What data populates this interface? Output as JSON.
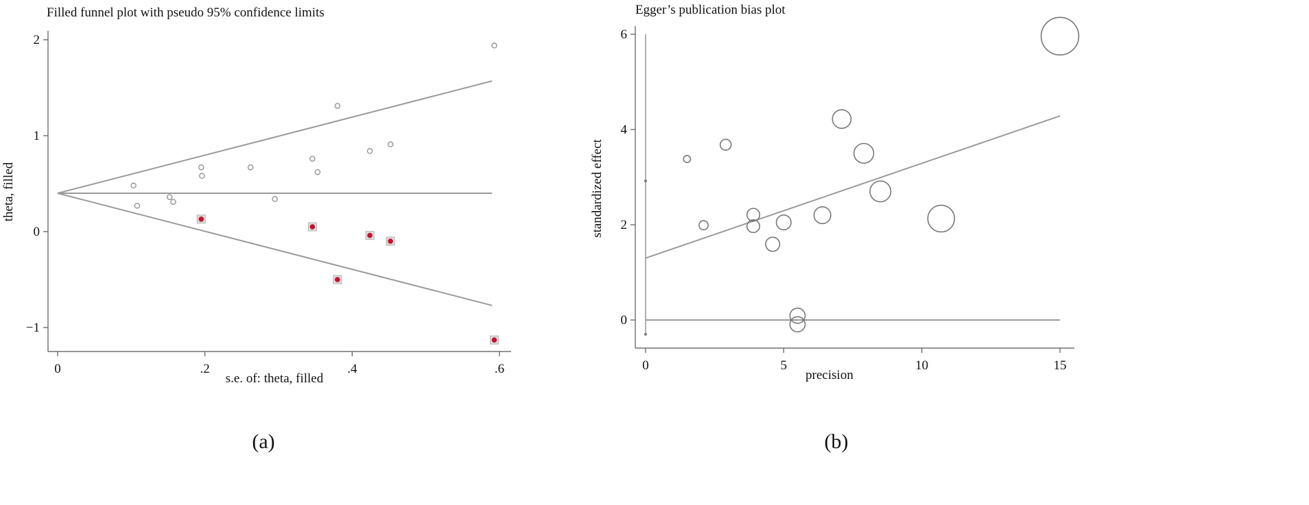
{
  "chart_data": [
    {
      "type": "scatter",
      "title": "Filled funnel plot with pseudo 95% confidence limits",
      "xlabel": "s.e. of: theta, filled",
      "ylabel": "theta, filled",
      "caption": "(a)",
      "xlim": [
        0,
        0.61
      ],
      "ylim": [
        -1.25,
        2.1
      ],
      "x_ticks": [
        0,
        0.2,
        0.4,
        0.6
      ],
      "x_tick_labels": [
        "0",
        ".2",
        ".4",
        ".6"
      ],
      "y_ticks": [
        -1,
        0,
        1,
        2
      ],
      "y_tick_labels": [
        "−1",
        "0",
        "1",
        "2"
      ],
      "pooled_estimate": 0.4,
      "funnel_lines": {
        "apex": [
          0,
          0.4
        ],
        "upper_end": [
          0.59,
          1.57
        ],
        "lower_end": [
          0.59,
          -0.77
        ]
      },
      "series": [
        {
          "role": "observed",
          "marker": "hollow-circle",
          "points": [
            [
              0.103,
              0.48
            ],
            [
              0.108,
              0.27
            ],
            [
              0.152,
              0.36
            ],
            [
              0.157,
              0.31
            ],
            [
              0.195,
              0.67
            ],
            [
              0.196,
              0.58
            ],
            [
              0.262,
              0.67
            ],
            [
              0.295,
              0.34
            ],
            [
              0.346,
              0.76
            ],
            [
              0.353,
              0.62
            ],
            [
              0.38,
              1.31
            ],
            [
              0.424,
              0.84
            ],
            [
              0.452,
              0.91
            ],
            [
              0.593,
              1.94
            ]
          ]
        },
        {
          "role": "filled",
          "marker": "filled-square",
          "points": [
            [
              0.195,
              0.13
            ],
            [
              0.346,
              0.05
            ],
            [
              0.38,
              -0.5
            ],
            [
              0.424,
              -0.04
            ],
            [
              0.452,
              -0.1
            ],
            [
              0.593,
              -1.13
            ]
          ]
        }
      ],
      "colors": {
        "filled_marker": "#c8102e",
        "lines": "#9a9a9a",
        "markers": "#8d8d8d"
      }
    },
    {
      "type": "scatter",
      "title": "Egger’s publication bias plot",
      "xlabel": "precision",
      "ylabel": "standardized effect",
      "caption": "(b)",
      "xlim": [
        -0.3,
        15.2
      ],
      "ylim": [
        -0.55,
        6.15
      ],
      "x_ticks": [
        0,
        5,
        10,
        15
      ],
      "x_tick_labels": [
        "0",
        "5",
        "10",
        "15"
      ],
      "y_ticks": [
        0,
        2,
        4,
        6
      ],
      "y_tick_labels": [
        "0",
        "2",
        "4",
        "6"
      ],
      "regression_line": {
        "intercept": 1.3,
        "slope": 0.199
      },
      "intercept_ci": [
        -0.3,
        2.92
      ],
      "zero_line": 0,
      "points": [
        {
          "x": 1.5,
          "y": 3.38,
          "size": 0.13
        },
        {
          "x": 2.1,
          "y": 1.99,
          "size": 0.22
        },
        {
          "x": 2.9,
          "y": 3.68,
          "size": 0.3
        },
        {
          "x": 3.9,
          "y": 2.21,
          "size": 0.38
        },
        {
          "x": 3.9,
          "y": 1.97,
          "size": 0.38
        },
        {
          "x": 4.6,
          "y": 1.59,
          "size": 0.44
        },
        {
          "x": 5.0,
          "y": 2.05,
          "size": 0.47
        },
        {
          "x": 5.5,
          "y": 0.09,
          "size": 0.49
        },
        {
          "x": 5.5,
          "y": -0.09,
          "size": 0.49
        },
        {
          "x": 6.4,
          "y": 2.2,
          "size": 0.56
        },
        {
          "x": 7.1,
          "y": 4.22,
          "size": 0.64
        },
        {
          "x": 7.9,
          "y": 3.5,
          "size": 0.69
        },
        {
          "x": 8.5,
          "y": 2.7,
          "size": 0.74
        },
        {
          "x": 10.7,
          "y": 2.13,
          "size": 1.0
        },
        {
          "x": 15.0,
          "y": 5.96,
          "size": 1.48
        }
      ],
      "colors": {
        "bubbles": "#777777",
        "lines": "#9a9a9a"
      }
    }
  ]
}
